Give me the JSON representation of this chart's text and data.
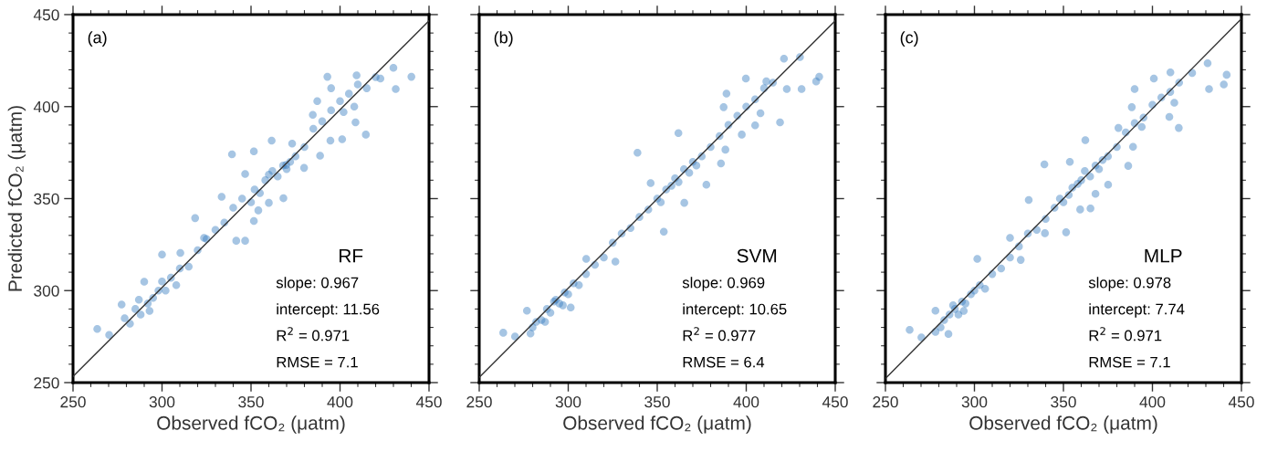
{
  "chart_data": [
    {
      "type": "scatter",
      "xlabel": "Observed fCO₂ (μatm)",
      "ylabel": "Predicted fCO₂ (μatm)",
      "xlim": [
        250,
        450
      ],
      "ylim": [
        250,
        450
      ],
      "xticks": [
        250,
        300,
        350,
        400,
        450
      ],
      "yticks": [
        250,
        300,
        350,
        400,
        450
      ],
      "grid": false,
      "annotations": [
        "(a)",
        "RF",
        "slope: 0.967",
        "intercept: 11.56",
        "R$^{2}$ = 0.971",
        "RMSE = 7.1"
      ],
      "series": [
        {
          "marker": "circle",
          "color": "#3a7fc0",
          "x": [
            263.6,
            270.3,
            277.3,
            290,
            300,
            310.3,
            318.6,
            339.3,
            351.6,
            346.7,
            333.5,
            323.6,
            341.7,
            346.7,
            351.6,
            354.1,
            368.2,
            360,
            361.6,
            388.8,
            401.2,
            414.5,
            408.7,
            392.9,
            409.3,
            430,
            431.3,
            440.1,
            422.7,
            387.2,
            384.7,
            394.6,
            379.8,
            373.1,
            369.8,
            285,
            288,
            292,
            295,
            298,
            302,
            305,
            310,
            315,
            320,
            325,
            330,
            335,
            340,
            345,
            350,
            352,
            355,
            358,
            360,
            362,
            365,
            368,
            370,
            372,
            375,
            380,
            385,
            390,
            395,
            400,
            405,
            408,
            410,
            402,
            395,
            415,
            420,
            282,
            279,
            287,
            293,
            300,
            308
          ],
          "values": [
            279.2,
            275.9,
            292.4,
            304.8,
            319.6,
            320.5,
            339.4,
            374.1,
            375.7,
            363.4,
            351,
            328.7,
            327.1,
            327.1,
            337.8,
            343.6,
            350.2,
            347.7,
            381.5,
            373.3,
            382.3,
            384.8,
            391.4,
            416.2,
            417,
            421.1,
            409.6,
            416.2,
            415.3,
            403,
            395.5,
            381.5,
            366.7,
            379.9,
            368.3,
            290,
            287,
            293,
            296,
            300,
            300,
            307,
            312,
            313,
            322,
            328,
            333,
            337,
            345,
            350,
            348,
            355,
            353,
            360,
            363,
            365,
            362,
            368,
            366,
            370,
            373,
            378,
            388,
            392,
            398,
            403,
            407,
            400,
            412,
            397,
            410,
            410,
            416,
            282,
            285,
            295,
            289,
            305,
            303
          ]
        },
        {
          "type": "line",
          "color": "#333333",
          "x": [
            250,
            450
          ],
          "values": [
            253.3,
            446.7
          ]
        }
      ]
    },
    {
      "type": "scatter",
      "xlabel": "Observed fCO₂ (μatm)",
      "xlim": [
        250,
        450
      ],
      "ylim": [
        250,
        450
      ],
      "xticks": [
        250,
        300,
        350,
        400,
        450
      ],
      "yticks": [
        250,
        300,
        350,
        400,
        450
      ],
      "tick_labels": "x",
      "grid": false,
      "annotations": [
        "(b)",
        "SVM",
        "slope: 0.969",
        "intercept: 10.65",
        "R$^{2}$ = 0.977",
        "RMSE = 6.4"
      ],
      "series": [
        {
          "marker": "circle",
          "color": "#3a7fc0",
          "x": [
            263.5,
            270.1,
            276.8,
            278.8,
            301.4,
            310.1,
            326.5,
            338.9,
            353.7,
            346.3,
            365.2,
            377.6,
            361.9,
            388.3,
            385.8,
            397.5,
            405,
            419,
            387.3,
            388.9,
            399.8,
            421.2,
            430.2,
            422.8,
            431.1,
            439.3,
            441,
            411.3,
            408,
            282,
            285,
            288,
            290,
            292,
            295,
            298,
            300,
            303,
            306,
            310,
            315,
            320,
            325,
            330,
            335,
            340,
            345,
            350,
            352,
            355,
            358,
            360,
            362,
            365,
            368,
            370,
            372,
            375,
            380,
            385,
            390,
            395,
            400,
            405,
            410,
            415,
            280,
            287,
            293,
            297
          ],
          "values": [
            277.1,
            275.1,
            289.1,
            276.7,
            290.8,
            317.2,
            315.8,
            374.9,
            332,
            358.4,
            347.7,
            357.6,
            385.6,
            376.6,
            369.1,
            384.8,
            389.8,
            391.4,
            399.7,
            407.1,
            415.3,
            426.1,
            426.9,
            409.6,
            409.6,
            413.7,
            416.2,
            413.7,
            396.4,
            283,
            284,
            290,
            288,
            294,
            293,
            299,
            298,
            304,
            303,
            309,
            314,
            318,
            326,
            331,
            334,
            340,
            344,
            350,
            348,
            355,
            357,
            361,
            359,
            366,
            364,
            370,
            368,
            373,
            378,
            384,
            390,
            395,
            400,
            404,
            410,
            413,
            280,
            283,
            295,
            292
          ]
        },
        {
          "type": "line",
          "color": "#333333",
          "x": [
            250,
            450
          ],
          "values": [
            252.9,
            446.7
          ]
        }
      ]
    },
    {
      "type": "scatter",
      "xlabel": "Observed fCO₂ (μatm)",
      "xlim": [
        250,
        450
      ],
      "ylim": [
        250,
        450
      ],
      "xticks": [
        250,
        300,
        350,
        400,
        450
      ],
      "yticks": [
        250,
        300,
        350,
        400,
        450
      ],
      "tick_labels": "x",
      "grid": false,
      "annotations": [
        "(c)",
        "MLP",
        "slope: 0.978",
        "intercept: 7.74",
        "R$^{2}$ = 0.971",
        "RMSE = 7.1"
      ],
      "series": [
        {
          "marker": "circle",
          "color": "#3a7fc0",
          "x": [
            263.6,
            270.2,
            278.1,
            285.4,
            278.1,
            301.6,
            326,
            320,
            339.6,
            351.5,
            330.5,
            339.3,
            353.6,
            359.4,
            365.2,
            368,
            375.1,
            386.4,
            362.3,
            389.1,
            394,
            414.8,
            409.5,
            388.4,
            390,
            400.8,
            410.1,
            422.3,
            431,
            431.8,
            440.1,
            441.7,
            412.3,
            380.9,
            283,
            286,
            289,
            291,
            293,
            295,
            298,
            300,
            303,
            306,
            310,
            315,
            320,
            325,
            330,
            335,
            340,
            345,
            348,
            350,
            353,
            355,
            358,
            360,
            362,
            365,
            368,
            370,
            372,
            375,
            380,
            385,
            390,
            395,
            400,
            405,
            410,
            415,
            281,
            288,
            294
          ],
          "values": [
            278.7,
            274.6,
            277.6,
            276.4,
            289.1,
            317.2,
            316.7,
            328.7,
            331.2,
            331.7,
            349.3,
            368.6,
            370,
            344.1,
            344.7,
            352.6,
            357.6,
            367.8,
            381.8,
            378.2,
            389,
            388.4,
            394.4,
            399.7,
            409.6,
            415.3,
            418.6,
            418.3,
            423.6,
            409.6,
            412,
            417.3,
            402.1,
            388.4,
            284,
            287,
            290,
            287,
            294,
            293,
            298,
            300,
            303,
            301,
            309,
            312,
            318,
            324,
            331,
            333,
            339,
            345,
            350,
            348,
            352,
            356,
            358,
            360,
            365,
            362,
            368,
            366,
            371,
            373,
            378,
            386,
            391,
            394,
            401,
            405,
            408,
            413,
            280,
            292,
            289
          ]
        },
        {
          "type": "line",
          "color": "#333333",
          "x": [
            250,
            450
          ],
          "values": [
            252.2,
            447.8
          ]
        }
      ]
    }
  ]
}
